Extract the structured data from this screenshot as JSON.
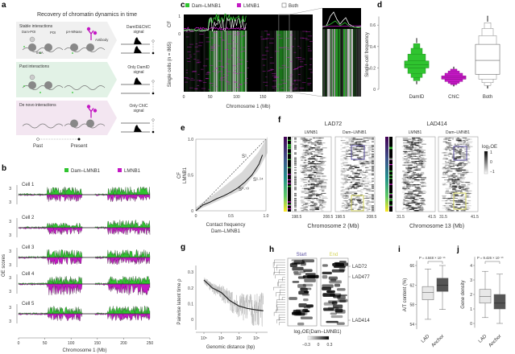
{
  "panel_labels": [
    "a",
    "b",
    "c",
    "d",
    "e",
    "f",
    "g",
    "h",
    "i",
    "j"
  ],
  "colors": {
    "dam_lmnb1": "#2fc42f",
    "lmnb1": "#c418c4",
    "both": "#ffffff",
    "stable_bg": "#f0f0f0",
    "past_bg": "#e2f2e6",
    "denovo_bg": "#f3e6f1",
    "start": "#5a4fa0",
    "end": "#d4d45a"
  },
  "panel_a": {
    "title": "Recovery of chromatin dynamics in time",
    "rows": [
      {
        "label": "Stable interactions",
        "signal_1": "DamID&ChIC",
        "signal_2": "signal"
      },
      {
        "label": "Past interactions",
        "signal_1": "Only DamID",
        "signal_2": "signal"
      },
      {
        "label": "De novo interactions",
        "signal_1": "Only ChIC",
        "signal_2": "signal"
      }
    ],
    "annotations": {
      "dam_poi": "Dam-POI",
      "poi": "POI",
      "pa_mnase": "pA-MNase",
      "antibody": "Antibody",
      "m6a": "m6A"
    },
    "timeline": {
      "past": "Past",
      "present": "Present"
    }
  },
  "chart_data": [
    {
      "panel": "b",
      "type": "area",
      "legend": [
        "Dam–LMNB1",
        "LMNB1"
      ],
      "panels": [
        "Cell 1",
        "Cell 2",
        "Cell 3",
        "Cell 4",
        "Cell 5"
      ],
      "ylabel": "OE scores",
      "ytick": "3",
      "xlabel": "Chromosome 1 (Mb)",
      "xticks": [
        0,
        50,
        100,
        150,
        200,
        250
      ],
      "xlim": [
        0,
        250
      ],
      "lad_regions_mb": [
        [
          55,
          120
        ],
        [
          170,
          250
        ]
      ]
    },
    {
      "panel": "c",
      "type": "heatmap",
      "legend": [
        "Dam–LMNB1",
        "LMNB1",
        "Both"
      ],
      "ylabel": "Single cells (n = 865)",
      "cf_label": "CF",
      "cf_ticks": [
        "1",
        "0"
      ],
      "xlabel": "Chromosome 1 (Mb)",
      "xticks": [
        0,
        50,
        100,
        150,
        200
      ],
      "zoom_region_mb": [
        180,
        200
      ]
    },
    {
      "panel": "d",
      "type": "boxen",
      "categories": [
        "DamID",
        "ChIC",
        "Both"
      ],
      "ylabel": "Single-cell frequency",
      "yticks": [
        0,
        0.2,
        0.4,
        0.6
      ],
      "ylim": [
        0,
        0.7
      ],
      "stats": [
        {
          "median": 0.23,
          "q1": 0.2,
          "q3": 0.265,
          "min": 0.05,
          "max": 0.48
        },
        {
          "median": 0.11,
          "q1": 0.095,
          "q3": 0.125,
          "min": 0.03,
          "max": 0.21
        },
        {
          "median": 0.27,
          "q1": 0.14,
          "q3": 0.42,
          "min": 0.01,
          "max": 0.69
        }
      ]
    },
    {
      "panel": "e",
      "type": "line",
      "xlabel": "Contact frequency",
      "xlabel2": "Dam–LMNB1",
      "ylabel": "CF",
      "ylabel2": "LMNB1",
      "xticks": [
        "0",
        "0.5",
        "1.0"
      ],
      "yticks": [
        "0",
        "0.5",
        "1.0"
      ],
      "xlim": [
        0,
        1
      ],
      "ylim": [
        0,
        1
      ],
      "x": [
        0,
        0.1,
        0.2,
        0.3,
        0.4,
        0.5,
        0.6,
        0.7,
        0.8,
        0.9,
        0.95
      ],
      "y": [
        0,
        0.08,
        0.12,
        0.17,
        0.21,
        0.26,
        0.32,
        0.4,
        0.5,
        0.65,
        0.78
      ],
      "annotations": [
        "S¹",
        "S¹·¹⁴",
        "S⁰·⁷³"
      ]
    },
    {
      "panel": "f",
      "type": "heatmap",
      "groups": [
        {
          "title": "LAD72",
          "tracks": [
            "LMNB1",
            "Dam–LMNB1"
          ],
          "xticks": [
            "198.5",
            "208.5"
          ],
          "xlabel": "Chromosome 2 (Mb)"
        },
        {
          "title": "LAD414",
          "tracks": [
            "LMNB1",
            "Dam–LMNB1"
          ],
          "xticks": [
            "31.5",
            "41.5"
          ],
          "xlabel": "Chromosome 13 (Mb)"
        }
      ],
      "colorbar": {
        "label": "log₂OE",
        "ticks": [
          "1",
          "0",
          "−1"
        ]
      }
    },
    {
      "panel": "g",
      "type": "line",
      "xlabel": "Genomic distance (bp)",
      "ylabel": "Pairwise latent time ρ",
      "xscale": "log",
      "xticks": [
        "10⁵",
        "10⁶",
        "10⁷",
        "10⁸"
      ],
      "yticks": [
        "0",
        "0.1",
        "0.2",
        "0.3"
      ],
      "ylim": [
        -0.05,
        0.35
      ],
      "x": [
        100000,
        300000,
        1000000,
        3000000,
        10000000,
        30000000,
        100000000,
        250000000
      ],
      "y": [
        0.25,
        0.2,
        0.17,
        0.12,
        0.085,
        0.07,
        0.06,
        0.055
      ]
    },
    {
      "panel": "h",
      "type": "heatmap",
      "columns": [
        "Start",
        "End"
      ],
      "row_labels": [
        "LAD72",
        "LAD477",
        "LAD414"
      ],
      "colorbar": {
        "label": "log₂OE(Dam–LMNB1)",
        "ticks": [
          "−0.3",
          "0",
          "0.3"
        ]
      }
    },
    {
      "panel": "i",
      "type": "box",
      "categories": [
        "LAD",
        "Anchor"
      ],
      "ylabel": "A/T content (%)",
      "yticks": [
        54,
        58,
        62,
        66
      ],
      "ylim": [
        53,
        67
      ],
      "stats": [
        {
          "median": 60.5,
          "q1": 59,
          "q3": 61.7,
          "min": 55,
          "max": 65.3
        },
        {
          "median": 62,
          "q1": 60.7,
          "q3": 63.4,
          "min": 57,
          "max": 66
        }
      ],
      "p_value": "P = 4.848 × 10⁻¹⁵"
    },
    {
      "panel": "j",
      "type": "box",
      "categories": [
        "LAD",
        "Anchor"
      ],
      "ylabel": "Gene density",
      "yticks": [
        0,
        1,
        2,
        3,
        4
      ],
      "ylim": [
        -0.3,
        4.6
      ],
      "stats": [
        {
          "median": 1.85,
          "q1": 1.4,
          "q3": 2.35,
          "min": 0.4,
          "max": 3.6
        },
        {
          "median": 1.4,
          "q1": 1.0,
          "q3": 2.0,
          "min": 0,
          "max": 3.4
        }
      ],
      "p_value": "P = 9.426 × 10⁻¹³"
    }
  ]
}
